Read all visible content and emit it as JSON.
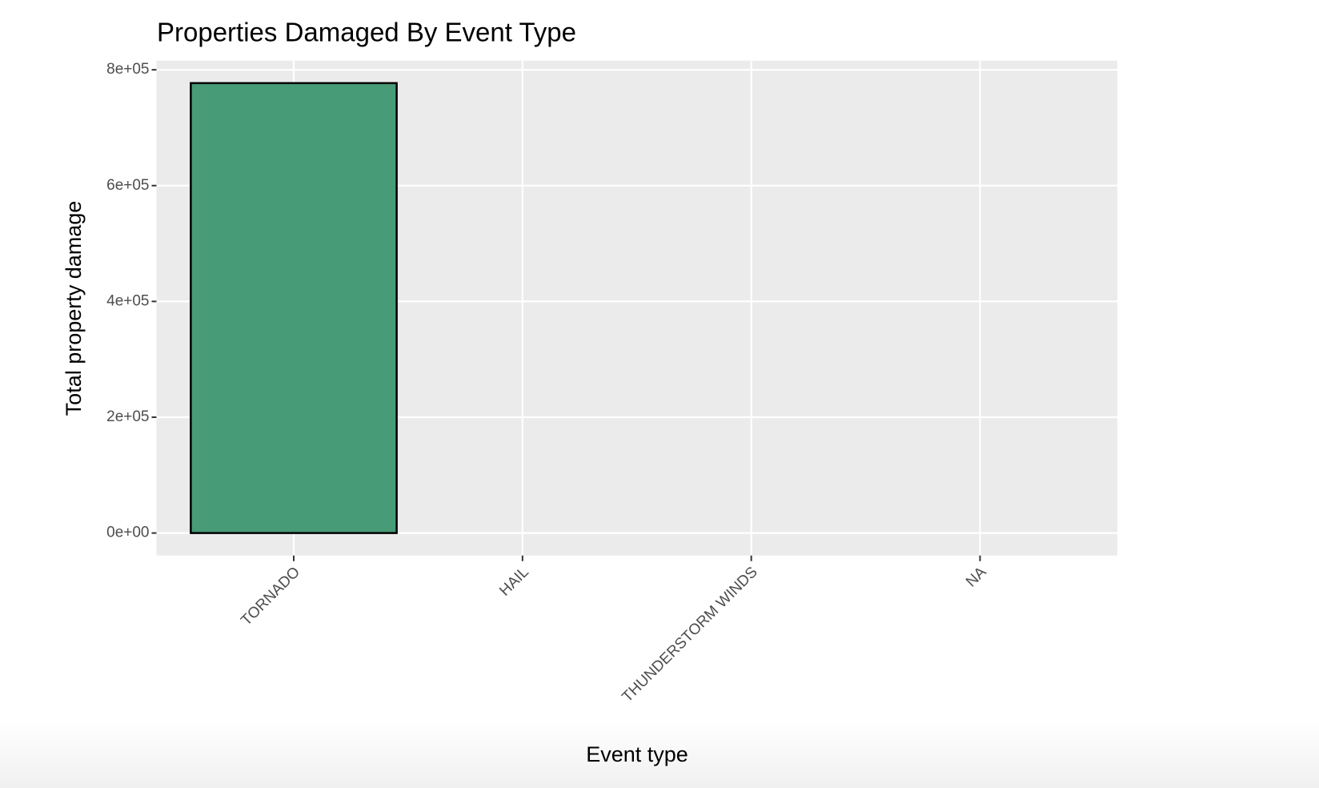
{
  "chart_data": {
    "type": "bar",
    "title": "Properties Damaged By Event Type",
    "x_label": "Event type",
    "y_label": "Total property damage",
    "categories": [
      "TORNADO",
      "HAIL",
      "THUNDERSTORM WINDS",
      "NA"
    ],
    "values": [
      777000,
      0,
      0,
      null
    ],
    "color": "#479b77",
    "ylim": [
      -38850,
      815850
    ],
    "yticks": [
      {
        "value": 0,
        "label": "0e+00"
      },
      {
        "value": 200000,
        "label": "2e+05"
      },
      {
        "value": 400000,
        "label": "4e+05"
      },
      {
        "value": 600000,
        "label": "6e+05"
      },
      {
        "value": 800000,
        "label": "8e+05"
      }
    ],
    "grid": true
  }
}
